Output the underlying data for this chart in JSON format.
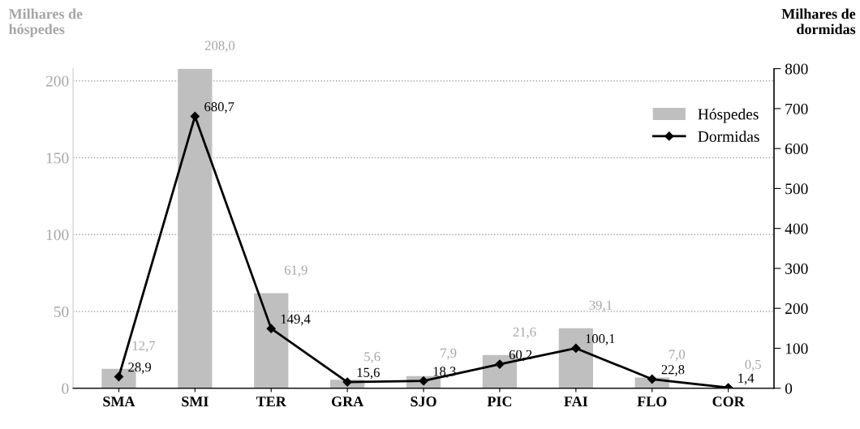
{
  "chart_data": {
    "type": "bar",
    "categories": [
      "SMA",
      "SMI",
      "TER",
      "GRA",
      "SJO",
      "PIC",
      "FAI",
      "FLO",
      "COR"
    ],
    "ylabel": "Milhares de\nhóspedes",
    "y2label": "Milhares de\ndormidas",
    "series": [
      {
        "name": "Hóspedes",
        "color": "#bfbfbf",
        "values": [
          12.7,
          208.0,
          61.9,
          5.6,
          7.9,
          21.6,
          39.1,
          7.0,
          0.5
        ],
        "value_labels": [
          "12,7",
          "208,0",
          "61,9",
          "5,6",
          "7,9",
          "21,6",
          "39,1",
          "7,0",
          "0,5"
        ]
      },
      {
        "name": "Dormidas",
        "type": "line",
        "axis": "y2",
        "color": "#000000",
        "marker": "diamond",
        "line_style": "solid",
        "values": [
          28.9,
          680.7,
          149.4,
          15.6,
          18.3,
          60.2,
          100.1,
          22.8,
          1.4
        ],
        "value_labels": [
          "28,9",
          "680,7",
          "149,4",
          "15,6",
          "18,3",
          "60,2",
          "100,1",
          "22,8",
          "1,4"
        ]
      }
    ],
    "ylim": [
      0,
      208
    ],
    "yticks": [
      0,
      50,
      100,
      150,
      200
    ],
    "y2lim": [
      0,
      800
    ],
    "y2ticks": [
      0,
      100,
      200,
      300,
      400,
      500,
      600,
      700,
      800
    ],
    "grid": "y",
    "legend": "top right"
  }
}
